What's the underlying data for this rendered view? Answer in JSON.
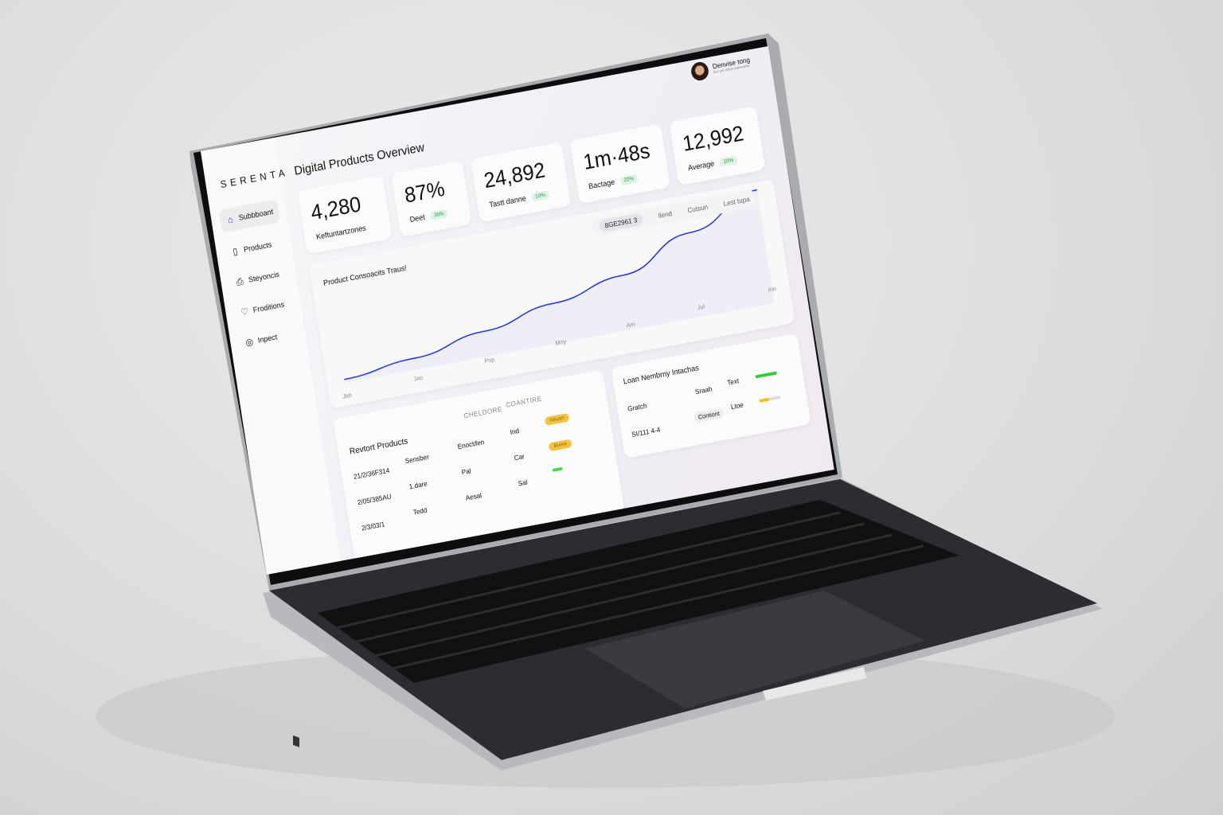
{
  "sidebar": {
    "brand": "SERENTA",
    "items": [
      {
        "label": "Subbboant",
        "icon": "dashboard-icon",
        "active": true
      },
      {
        "label": "Products",
        "icon": "phone-icon"
      },
      {
        "label": "Steyoncis",
        "icon": "printer-icon"
      },
      {
        "label": "Froditions",
        "icon": "shield-icon"
      },
      {
        "label": "Inpect",
        "icon": "target-icon"
      }
    ]
  },
  "header": {
    "title": "Digital Products Overview",
    "user": {
      "name": "Denvise tong",
      "subtitle": "fex yre wrew wasvartts"
    }
  },
  "stats": [
    {
      "value": "4,280",
      "label": "Keftuntartzones",
      "badge": ""
    },
    {
      "value": "87%",
      "label": "Deet",
      "badge": "30%"
    },
    {
      "value": "24,892",
      "label": "Tastt danne",
      "badge": "10%"
    },
    {
      "value": "1m·48s",
      "label": "Bactage",
      "badge": "20%"
    },
    {
      "value": "12,992",
      "label": "Average",
      "badge": "10%"
    }
  ],
  "tabs": [
    "8GE2961 3",
    "llend",
    "Cutsun",
    "Lest tupa"
  ],
  "chart_data": {
    "type": "area",
    "title": "Product Consoacits Traus!",
    "categories": [
      "Jbh",
      "Jao",
      "Pop",
      "Moy",
      "Arn",
      "Jul",
      "Ino"
    ],
    "values": [
      3,
      10,
      22,
      35,
      48,
      74,
      100
    ],
    "color": "#2233dd",
    "grid": false
  },
  "recent": {
    "title": "Revtort Products",
    "headers": [
      "CHELDORE",
      "COANTIRE"
    ],
    "rows": [
      {
        "c1": "21/2/36F314",
        "c2": "Sensber",
        "c3": "Enoctifen",
        "c4": "Ind",
        "status": "Neusn",
        "status_color": "#f5c343"
      },
      {
        "c1": "2/05/385AU",
        "c2": "1.dare",
        "c3": "Pal",
        "c4": "Car",
        "status": "Bume",
        "status_color": "#f5c343"
      },
      {
        "c1": "2/3/03/1",
        "c2": "Tedd",
        "c3": "Aesal",
        "c4": "Sal",
        "status": "",
        "status_color": "#4cd44c"
      }
    ]
  },
  "membership": {
    "title": "Loan Nembrny Intachas",
    "rows": [
      {
        "label": "Gratch",
        "mid": "Sraah",
        "right": "Text",
        "progress": 1.0,
        "color": "#33cc33"
      },
      {
        "label": "SI/111  4-4",
        "mid": "Contiont",
        "right": "Ltoe",
        "progress": 0.45,
        "color": "#f5c020"
      }
    ]
  }
}
